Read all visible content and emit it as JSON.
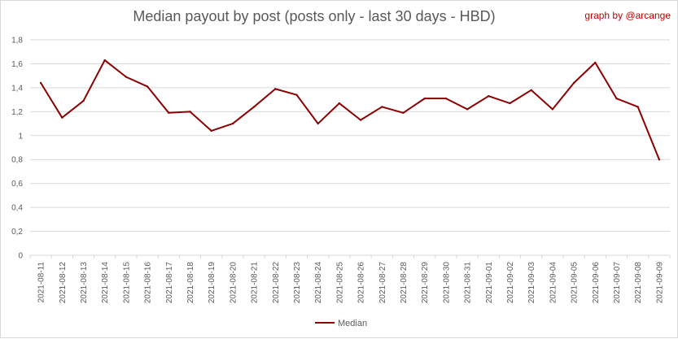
{
  "chart_data": {
    "type": "line",
    "title": "Median payout by post (posts only - last 30 days - HBD)",
    "credit": "graph by @arcange",
    "x": [
      "2021-08-11",
      "2021-08-12",
      "2021-08-13",
      "2021-08-14",
      "2021-08-15",
      "2021-08-16",
      "2021-08-17",
      "2021-08-18",
      "2021-08-19",
      "2021-08-20",
      "2021-08-21",
      "2021-08-22",
      "2021-08-23",
      "2021-08-24",
      "2021-08-25",
      "2021-08-26",
      "2021-08-27",
      "2021-08-28",
      "2021-08-29",
      "2021-08-30",
      "2021-08-31",
      "2021-09-01",
      "2021-09-02",
      "2021-09-03",
      "2021-09-04",
      "2021-09-05",
      "2021-09-06",
      "2021-09-07",
      "2021-09-08",
      "2021-09-09"
    ],
    "y_ticks": [
      "0",
      "0,2",
      "0,4",
      "0,6",
      "0,8",
      "1",
      "1,2",
      "1,4",
      "1,6",
      "1,8"
    ],
    "ylim": [
      0,
      1.8
    ],
    "grid": true,
    "legend_position": "bottom",
    "series": [
      {
        "name": "Median",
        "color": "#8b0000",
        "values": [
          1.44,
          1.15,
          1.29,
          1.63,
          1.49,
          1.41,
          1.19,
          1.2,
          1.04,
          1.1,
          1.24,
          1.39,
          1.34,
          1.1,
          1.27,
          1.13,
          1.24,
          1.19,
          1.31,
          1.31,
          1.22,
          1.33,
          1.27,
          1.38,
          1.22,
          1.44,
          1.61,
          1.31,
          1.24,
          0.8
        ]
      }
    ]
  }
}
